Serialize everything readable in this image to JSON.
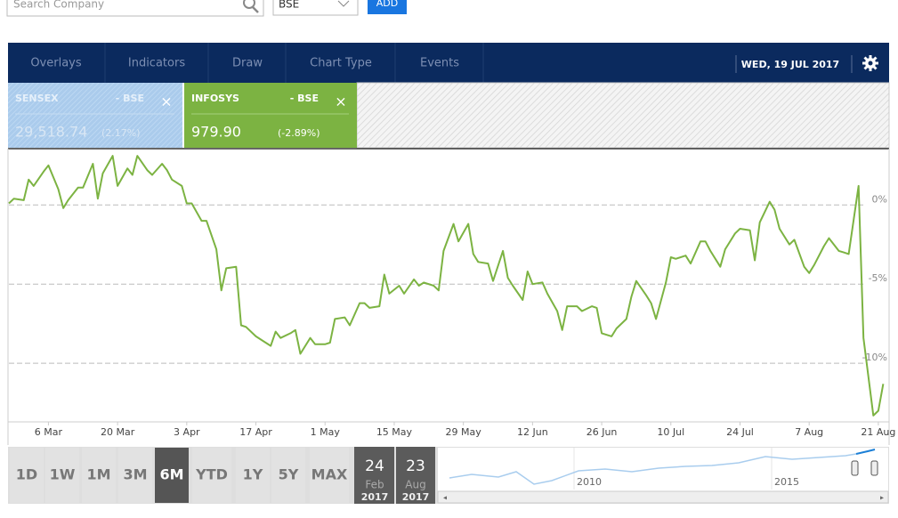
{
  "toolbar": {
    "search_placeholder": "Search Company",
    "exchange": "BSE",
    "add_button": "ADD"
  },
  "menu": [
    "Overlays",
    "Indicators",
    "Draw",
    "Chart Type",
    "Events"
  ],
  "date": "WED, 19 JUL 2017",
  "tiles": [
    {
      "name": "SENSEX",
      "exchange": "- BSE",
      "price": "29,518.74",
      "change": "(2.17%)"
    },
    {
      "name": "INFOSYS",
      "exchange": "- BSE",
      "price": "979.90",
      "change": "(-2.89%)"
    }
  ],
  "chart_data": {
    "type": "line",
    "color": "#7cb342",
    "x": [
      57,
      58,
      60,
      61,
      62,
      64,
      65,
      67,
      68,
      69,
      71,
      72,
      74,
      75,
      76,
      78,
      79,
      81,
      82,
      83,
      85,
      86,
      88,
      89,
      90,
      92,
      93,
      94,
      96,
      97,
      99,
      100,
      101,
      103,
      104,
      105,
      107,
      108,
      110,
      111,
      112,
      114,
      115,
      116,
      118,
      119,
      121,
      122,
      123,
      125,
      126,
      128,
      129,
      130,
      132,
      133,
      134,
      136,
      137,
      139,
      140,
      141,
      143,
      144,
      145,
      147,
      148,
      150,
      151,
      152,
      154,
      155,
      157,
      158,
      159,
      161,
      162,
      163,
      165,
      166,
      168,
      169,
      170,
      172,
      173,
      175,
      176,
      177,
      179,
      180,
      182,
      183,
      184,
      186,
      187,
      188,
      190,
      191,
      192,
      194,
      195,
      197,
      198,
      199,
      201,
      202,
      204,
      205,
      207,
      208,
      209,
      211,
      212,
      213,
      215,
      216,
      218,
      219,
      220,
      222,
      223,
      225,
      226,
      227,
      229,
      230,
      232,
      233,
      234
    ],
    "values": [
      0.1,
      0.4,
      0.3,
      1.6,
      1.2,
      2.1,
      2.5,
      1.0,
      -0.2,
      0.3,
      1.1,
      1.1,
      2.6,
      0.4,
      2.0,
      3.1,
      1.2,
      2.3,
      1.9,
      3.1,
      2.2,
      1.9,
      2.6,
      2.2,
      1.6,
      1.2,
      0.1,
      0.1,
      -1.0,
      -1.0,
      -2.8,
      -5.4,
      -4.0,
      -3.9,
      -7.6,
      -7.7,
      -8.3,
      -8.5,
      -8.9,
      -8.0,
      -8.4,
      -8.1,
      -7.9,
      -9.4,
      -8.4,
      -8.8,
      -8.8,
      -8.7,
      -7.2,
      -7.1,
      -7.6,
      -6.2,
      -6.2,
      -6.5,
      -6.4,
      -4.4,
      -5.6,
      -5.1,
      -5.6,
      -4.7,
      -5.1,
      -4.9,
      -5.1,
      -5.4,
      -2.9,
      -1.2,
      -2.3,
      -1.2,
      -3.1,
      -3.6,
      -3.7,
      -4.8,
      -2.9,
      -4.6,
      -5.1,
      -6.0,
      -4.2,
      -5.0,
      -4.9,
      -5.6,
      -6.7,
      -7.9,
      -6.4,
      -6.4,
      -6.7,
      -6.4,
      -6.5,
      -8.1,
      -8.3,
      -7.8,
      -7.2,
      -5.8,
      -4.8,
      -5.7,
      -6.2,
      -7.2,
      -4.9,
      -3.3,
      -3.4,
      -3.2,
      -3.7,
      -2.3,
      -2.3,
      -2.9,
      -3.9,
      -2.8,
      -1.8,
      -1.5,
      -1.6,
      -3.5,
      -1.1,
      0.2,
      -0.3,
      -1.5,
      -2.5,
      -2.2,
      -3.9,
      -4.3,
      -3.8,
      -2.6,
      -2.1,
      -2.9,
      -3.0,
      -3.1,
      1.2,
      -8.4,
      -13.3,
      -13.0,
      -11.3
    ],
    "xlim": [
      57,
      235
    ],
    "xticks": [
      {
        "value": 65,
        "label": "6 Mar"
      },
      {
        "value": 79,
        "label": "20 Mar"
      },
      {
        "value": 93,
        "label": "3 Apr"
      },
      {
        "value": 107,
        "label": "17 Apr"
      },
      {
        "value": 121,
        "label": "1 May"
      },
      {
        "value": 135,
        "label": "15 May"
      },
      {
        "value": 149,
        "label": "29 May"
      },
      {
        "value": 163,
        "label": "12 Jun"
      },
      {
        "value": 177,
        "label": "26 Jun"
      },
      {
        "value": 191,
        "label": "10 Jul"
      },
      {
        "value": 205,
        "label": "24 Jul"
      },
      {
        "value": 219,
        "label": "7 Aug"
      },
      {
        "value": 233,
        "label": "21 Aug"
      }
    ],
    "ylim": [
      -13.7,
      3.5
    ],
    "yticks": [
      {
        "value": 0,
        "label": "0%"
      },
      {
        "value": -5,
        "label": "-5%"
      },
      {
        "value": -10,
        "label": "-10%"
      }
    ],
    "grid": true
  },
  "ranges": [
    "1D",
    "1W",
    "1M",
    "3M",
    "6M",
    "YTD",
    "1Y",
    "5Y",
    "MAX"
  ],
  "selected_range": "6M",
  "start_date": {
    "day": "24",
    "month": "Feb",
    "year": "2017"
  },
  "end_date": {
    "day": "23",
    "month": "Aug",
    "year": "2017"
  },
  "navigator": {
    "labels": [
      "2010",
      "2015"
    ]
  }
}
